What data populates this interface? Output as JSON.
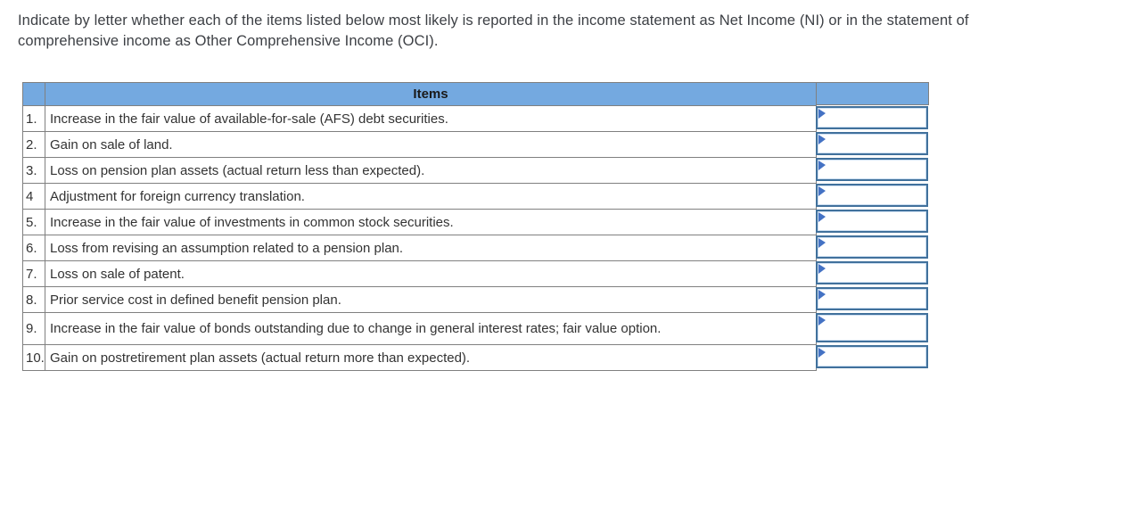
{
  "instructions": "Indicate by letter whether each of the items listed below most likely is reported in the income statement as Net Income (NI) or in the statement of comprehensive income as Other Comprehensive Income (OCI).",
  "table": {
    "items_header": "Items",
    "answers_header": "",
    "rows": [
      {
        "num": "1.",
        "text": "Increase in the fair value of available-for-sale (AFS) debt securities.",
        "answer": ""
      },
      {
        "num": "2.",
        "text": "Gain on sale of land.",
        "answer": ""
      },
      {
        "num": "3.",
        "text": "Loss on pension plan assets (actual return less than expected).",
        "answer": ""
      },
      {
        "num": "4",
        "text": "Adjustment for foreign currency translation.",
        "answer": ""
      },
      {
        "num": "5.",
        "text": "Increase in the fair value of investments in common stock securities.",
        "answer": ""
      },
      {
        "num": "6.",
        "text": "Loss from revising an assumption related to a pension plan.",
        "answer": ""
      },
      {
        "num": "7.",
        "text": "Loss on sale of patent.",
        "answer": ""
      },
      {
        "num": "8.",
        "text": "Prior service cost in defined benefit pension plan.",
        "answer": ""
      },
      {
        "num": "9.",
        "text": "Increase in the fair value of bonds outstanding due to change in general interest rates; fair value option.",
        "answer": ""
      },
      {
        "num": "10.",
        "text": "Gain on postretirement plan assets (actual return more than expected).",
        "answer": ""
      }
    ]
  },
  "colors": {
    "header_blue": "#74a9e0",
    "grid_gray": "#808080",
    "answer_border_blue": "#41719c",
    "flag_blue": "#4472c4",
    "instruction_text": "#3d4045",
    "item_text": "#333333"
  }
}
